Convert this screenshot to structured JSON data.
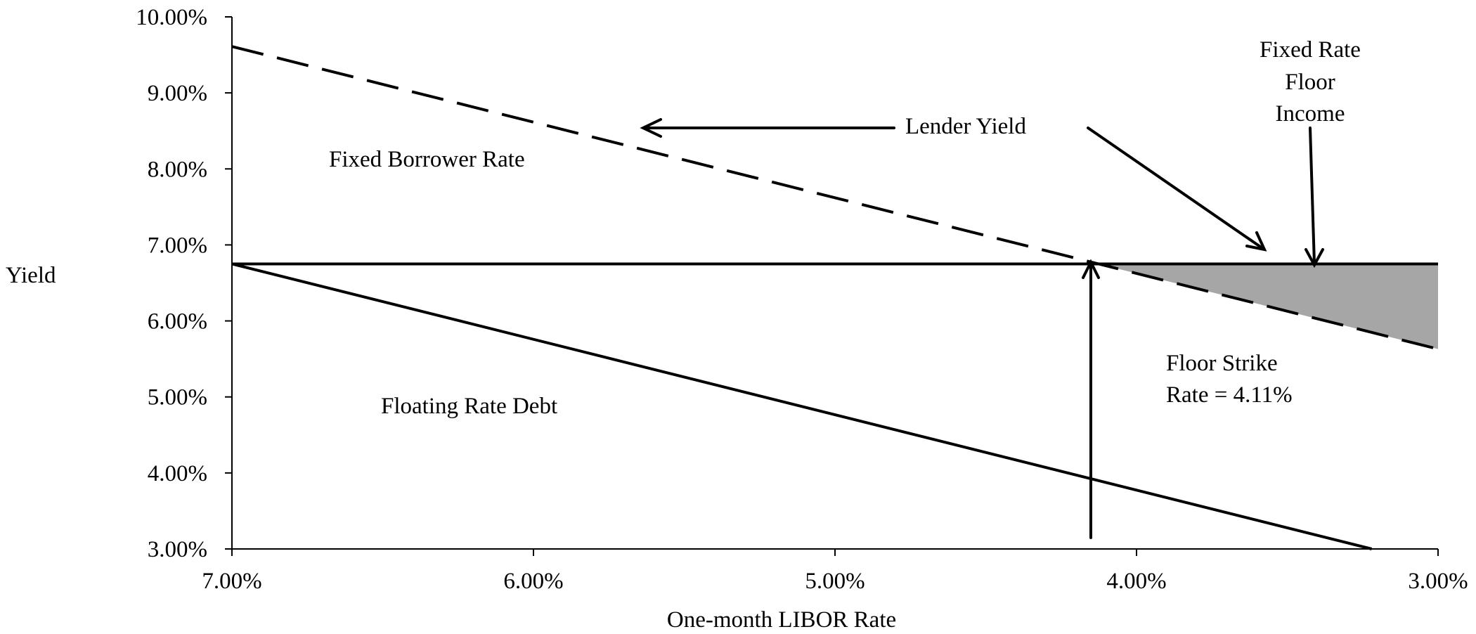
{
  "chart_data": {
    "type": "line",
    "xlabel": "One-month LIBOR Rate",
    "ylabel": "Yield",
    "xlim": [
      7.0,
      3.0
    ],
    "ylim": [
      3.0,
      10.0
    ],
    "x_reversed": true,
    "grid": false,
    "x_ticks": [
      "7.00%",
      "6.00%",
      "5.00%",
      "4.00%",
      "3.00%"
    ],
    "x_tick_values": [
      7,
      6,
      5,
      4,
      3
    ],
    "y_ticks": [
      "3.00%",
      "4.00%",
      "5.00%",
      "6.00%",
      "7.00%",
      "8.00%",
      "9.00%",
      "10.00%"
    ],
    "y_tick_values": [
      3,
      4,
      5,
      6,
      7,
      8,
      9,
      10
    ],
    "series": [
      {
        "style": "solid",
        "x": [
          7.0,
          3.0
        ],
        "y": [
          6.75,
          6.75
        ]
      },
      {
        "style": "dashed",
        "x": [
          7.0,
          3.0
        ],
        "y": [
          9.61,
          5.63
        ]
      },
      {
        "style": "solid",
        "x": [
          7.0,
          3.22
        ],
        "y": [
          6.75,
          2.98
        ]
      }
    ],
    "shaded_region": {
      "x": [
        4.11,
        3.0
      ],
      "color": "#a6a6a6"
    },
    "annotations": {
      "fixed_borrower_rate": "Fixed Borrower Rate",
      "lender_yield": "Lender Yield",
      "fixed_rate_floor_income": [
        "Fixed Rate",
        "Floor",
        "Income"
      ],
      "floating_rate_debt": "Floating Rate Debt",
      "floor_strike": [
        "Floor Strike",
        "Rate = 4.11%"
      ]
    },
    "colors": {
      "line": "#000000",
      "shade": "#a6a6a6"
    }
  }
}
